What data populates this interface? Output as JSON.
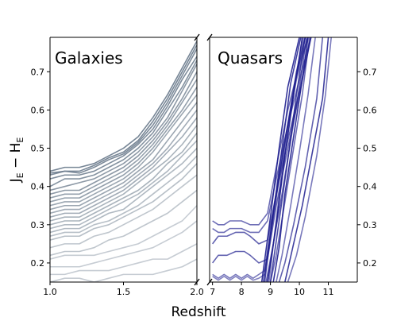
{
  "chart_data": {
    "type": "line",
    "ylabel_main": "J",
    "ylabel_sub1": "E",
    "ylabel_minus": " − H",
    "ylabel_sub2": "E",
    "xlabel": "Redshift",
    "ylim": [
      0.15,
      0.79
    ],
    "yticks": [
      "0.2",
      "0.3",
      "0.4",
      "0.5",
      "0.6",
      "0.7"
    ],
    "yticks_right": [
      "0.2",
      "0.3",
      "0.4",
      "0.5",
      "0.6",
      "0.7"
    ],
    "panels": [
      {
        "title": "Galaxies",
        "xlim": [
          1.0,
          2.0
        ],
        "xticks": [
          "1.0",
          "1.5",
          "2.0"
        ],
        "xticks_values": [
          1.0,
          1.5,
          2.0
        ],
        "color": "#708090",
        "x": [
          1.0,
          1.1,
          1.2,
          1.3,
          1.4,
          1.5,
          1.6,
          1.7,
          1.8,
          1.9,
          2.0
        ],
        "series": [
          {
            "values": [
              0.44,
              0.45,
              0.45,
              0.46,
              0.48,
              0.5,
              0.53,
              0.58,
              0.64,
              0.71,
              0.78
            ],
            "opacity": 0.95
          },
          {
            "values": [
              0.435,
              0.44,
              0.44,
              0.455,
              0.475,
              0.49,
              0.52,
              0.57,
              0.63,
              0.7,
              0.77
            ],
            "opacity": 0.95
          },
          {
            "values": [
              0.43,
              0.44,
              0.435,
              0.45,
              0.47,
              0.485,
              0.515,
              0.56,
              0.62,
              0.69,
              0.76
            ],
            "opacity": 0.9
          },
          {
            "values": [
              0.42,
              0.43,
              0.43,
              0.44,
              0.46,
              0.48,
              0.51,
              0.55,
              0.61,
              0.68,
              0.74
            ],
            "opacity": 0.9
          },
          {
            "values": [
              0.4,
              0.42,
              0.42,
              0.43,
              0.45,
              0.47,
              0.5,
              0.54,
              0.6,
              0.66,
              0.73
            ],
            "opacity": 0.85
          },
          {
            "values": [
              0.39,
              0.4,
              0.41,
              0.42,
              0.44,
              0.46,
              0.49,
              0.53,
              0.58,
              0.65,
              0.72
            ],
            "opacity": 0.8
          },
          {
            "values": [
              0.38,
              0.39,
              0.39,
              0.41,
              0.43,
              0.45,
              0.48,
              0.52,
              0.57,
              0.63,
              0.7
            ],
            "opacity": 0.8
          },
          {
            "values": [
              0.37,
              0.38,
              0.38,
              0.4,
              0.42,
              0.44,
              0.47,
              0.51,
              0.56,
              0.62,
              0.68
            ],
            "opacity": 0.75
          },
          {
            "values": [
              0.36,
              0.37,
              0.37,
              0.39,
              0.41,
              0.43,
              0.46,
              0.5,
              0.55,
              0.6,
              0.66
            ],
            "opacity": 0.75
          },
          {
            "values": [
              0.35,
              0.36,
              0.36,
              0.38,
              0.4,
              0.42,
              0.45,
              0.49,
              0.54,
              0.59,
              0.64
            ],
            "opacity": 0.7
          },
          {
            "values": [
              0.34,
              0.35,
              0.35,
              0.37,
              0.39,
              0.41,
              0.44,
              0.47,
              0.52,
              0.57,
              0.62
            ],
            "opacity": 0.7
          },
          {
            "values": [
              0.33,
              0.34,
              0.34,
              0.36,
              0.38,
              0.4,
              0.43,
              0.46,
              0.5,
              0.55,
              0.6
            ],
            "opacity": 0.65
          },
          {
            "values": [
              0.32,
              0.33,
              0.33,
              0.35,
              0.37,
              0.39,
              0.42,
              0.45,
              0.49,
              0.53,
              0.58
            ],
            "opacity": 0.65
          },
          {
            "values": [
              0.31,
              0.32,
              0.32,
              0.34,
              0.36,
              0.38,
              0.41,
              0.44,
              0.47,
              0.51,
              0.56
            ],
            "opacity": 0.6
          },
          {
            "values": [
              0.3,
              0.31,
              0.31,
              0.33,
              0.35,
              0.37,
              0.39,
              0.42,
              0.46,
              0.49,
              0.54
            ],
            "opacity": 0.6
          },
          {
            "values": [
              0.29,
              0.3,
              0.3,
              0.32,
              0.34,
              0.36,
              0.38,
              0.41,
              0.44,
              0.48,
              0.52
            ],
            "opacity": 0.55
          },
          {
            "values": [
              0.28,
              0.29,
              0.29,
              0.31,
              0.33,
              0.34,
              0.37,
              0.4,
              0.43,
              0.46,
              0.5
            ],
            "opacity": 0.55
          },
          {
            "values": [
              0.27,
              0.28,
              0.28,
              0.3,
              0.31,
              0.33,
              0.35,
              0.38,
              0.41,
              0.44,
              0.48
            ],
            "opacity": 0.5
          },
          {
            "values": [
              0.26,
              0.27,
              0.27,
              0.29,
              0.3,
              0.32,
              0.34,
              0.36,
              0.39,
              0.42,
              0.46
            ],
            "opacity": 0.5
          },
          {
            "values": [
              0.24,
              0.25,
              0.25,
              0.27,
              0.28,
              0.3,
              0.32,
              0.34,
              0.37,
              0.4,
              0.43
            ],
            "opacity": 0.45
          },
          {
            "values": [
              0.22,
              0.23,
              0.23,
              0.24,
              0.26,
              0.27,
              0.29,
              0.31,
              0.33,
              0.36,
              0.39
            ],
            "opacity": 0.45
          },
          {
            "values": [
              0.21,
              0.22,
              0.22,
              0.22,
              0.23,
              0.24,
              0.25,
              0.27,
              0.29,
              0.31,
              0.35
            ],
            "opacity": 0.4
          },
          {
            "values": [
              0.19,
              0.19,
              0.19,
              0.2,
              0.21,
              0.22,
              0.23,
              0.24,
              0.26,
              0.28,
              0.31
            ],
            "opacity": 0.4
          },
          {
            "values": [
              0.17,
              0.17,
              0.18,
              0.18,
              0.18,
              0.19,
              0.2,
              0.21,
              0.21,
              0.23,
              0.25
            ],
            "opacity": 0.4
          },
          {
            "values": [
              0.15,
              0.16,
              0.16,
              0.15,
              0.16,
              0.17,
              0.17,
              0.17,
              0.18,
              0.19,
              0.21
            ],
            "opacity": 0.4
          }
        ]
      },
      {
        "title": "Quasars",
        "xlim": [
          6.9,
          12.0
        ],
        "xticks": [
          "7",
          "8",
          "9",
          "10",
          "11"
        ],
        "xticks_values": [
          7,
          8,
          9,
          10,
          11
        ],
        "color": "#1f1f8f",
        "series": [
          {
            "x": [
              7.0,
              7.2,
              7.4,
              7.6,
              8.0,
              8.3,
              8.6,
              8.9,
              9.2,
              9.6,
              10.0,
              10.3
            ],
            "values": [
              0.31,
              0.3,
              0.3,
              0.31,
              0.31,
              0.3,
              0.3,
              0.33,
              0.45,
              0.6,
              0.72,
              0.79
            ],
            "opacity": 0.65
          },
          {
            "x": [
              7.0,
              7.2,
              7.4,
              7.6,
              8.0,
              8.3,
              8.6,
              8.9,
              9.2,
              9.6,
              10.0,
              10.4
            ],
            "values": [
              0.29,
              0.28,
              0.28,
              0.29,
              0.29,
              0.28,
              0.28,
              0.31,
              0.42,
              0.56,
              0.68,
              0.79
            ],
            "opacity": 0.65
          },
          {
            "x": [
              7.0,
              7.2,
              7.5,
              7.8,
              8.1,
              8.3,
              8.6,
              8.9,
              9.2,
              9.6,
              10.0,
              10.4
            ],
            "values": [
              0.25,
              0.27,
              0.27,
              0.28,
              0.28,
              0.27,
              0.25,
              0.26,
              0.38,
              0.52,
              0.65,
              0.79
            ],
            "opacity": 0.7
          },
          {
            "x": [
              7.0,
              7.2,
              7.5,
              7.8,
              8.1,
              8.3,
              8.6,
              8.9,
              9.2,
              9.6,
              10.0,
              10.4
            ],
            "values": [
              0.2,
              0.22,
              0.22,
              0.23,
              0.23,
              0.22,
              0.2,
              0.21,
              0.35,
              0.5,
              0.64,
              0.79
            ],
            "opacity": 0.7
          },
          {
            "x": [
              7.0,
              7.2,
              7.4,
              7.6,
              7.8,
              8.0,
              8.2,
              8.4,
              8.6,
              8.8,
              9.1,
              9.5,
              9.9,
              10.3
            ],
            "values": [
              0.17,
              0.16,
              0.17,
              0.16,
              0.17,
              0.16,
              0.17,
              0.16,
              0.17,
              0.18,
              0.34,
              0.52,
              0.68,
              0.79
            ],
            "opacity": 0.6
          },
          {
            "x": [
              7.0,
              7.2,
              7.4,
              7.6,
              7.8,
              8.0,
              8.2,
              8.4,
              8.6,
              8.8,
              9.1,
              9.5,
              9.9,
              10.2
            ],
            "values": [
              0.165,
              0.155,
              0.165,
              0.155,
              0.165,
              0.155,
              0.165,
              0.155,
              0.16,
              0.17,
              0.33,
              0.52,
              0.7,
              0.79
            ],
            "opacity": 0.55
          },
          {
            "x": [
              8.7,
              9.0,
              9.3,
              9.6,
              10.0
            ],
            "values": [
              0.15,
              0.32,
              0.5,
              0.66,
              0.79
            ],
            "opacity": 0.9
          },
          {
            "x": [
              8.8,
              9.1,
              9.4,
              9.7,
              10.05
            ],
            "values": [
              0.15,
              0.33,
              0.5,
              0.67,
              0.79
            ],
            "opacity": 0.85
          },
          {
            "x": [
              8.9,
              9.2,
              9.5,
              9.8,
              10.1
            ],
            "values": [
              0.15,
              0.3,
              0.48,
              0.64,
              0.79
            ],
            "opacity": 0.95
          },
          {
            "x": [
              9.0,
              9.3,
              9.6,
              9.9,
              10.2
            ],
            "values": [
              0.15,
              0.31,
              0.47,
              0.64,
              0.79
            ],
            "opacity": 0.8
          },
          {
            "x": [
              8.75,
              9.0,
              9.3,
              9.6,
              9.9,
              10.2
            ],
            "values": [
              0.15,
              0.27,
              0.42,
              0.56,
              0.69,
              0.79
            ],
            "opacity": 0.75
          },
          {
            "x": [
              8.85,
              9.1,
              9.4,
              9.7,
              10.0,
              10.25
            ],
            "values": [
              0.15,
              0.25,
              0.38,
              0.52,
              0.66,
              0.79
            ],
            "opacity": 0.7
          },
          {
            "x": [
              9.0,
              9.2,
              9.5,
              9.8,
              10.1,
              10.35
            ],
            "values": [
              0.15,
              0.22,
              0.36,
              0.5,
              0.64,
              0.79
            ],
            "opacity": 0.65
          },
          {
            "x": [
              9.1,
              9.3,
              9.5,
              9.8,
              10.1,
              10.3
            ],
            "values": [
              0.15,
              0.24,
              0.38,
              0.53,
              0.68,
              0.79
            ],
            "opacity": 0.9
          },
          {
            "x": [
              9.2,
              9.4,
              9.7,
              10.0,
              10.3,
              10.55
            ],
            "values": [
              0.15,
              0.22,
              0.35,
              0.49,
              0.64,
              0.79
            ],
            "opacity": 0.6
          },
          {
            "x": [
              9.3,
              9.5,
              9.8,
              10.2,
              10.6,
              10.8
            ],
            "values": [
              0.15,
              0.2,
              0.3,
              0.45,
              0.63,
              0.79
            ],
            "opacity": 0.7
          },
          {
            "x": [
              9.5,
              9.8,
              10.1,
              10.4,
              10.8,
              11.0
            ],
            "values": [
              0.15,
              0.25,
              0.35,
              0.47,
              0.63,
              0.79
            ],
            "opacity": 0.85
          },
          {
            "x": [
              9.6,
              9.9,
              10.2,
              10.6,
              10.9,
              11.1
            ],
            "values": [
              0.15,
              0.22,
              0.32,
              0.48,
              0.64,
              0.79
            ],
            "opacity": 0.6
          },
          {
            "x": [
              8.95,
              9.15,
              9.4,
              9.65,
              9.9,
              10.15
            ],
            "values": [
              0.15,
              0.28,
              0.44,
              0.58,
              0.7,
              0.79
            ],
            "opacity": 0.6
          }
        ]
      }
    ]
  }
}
